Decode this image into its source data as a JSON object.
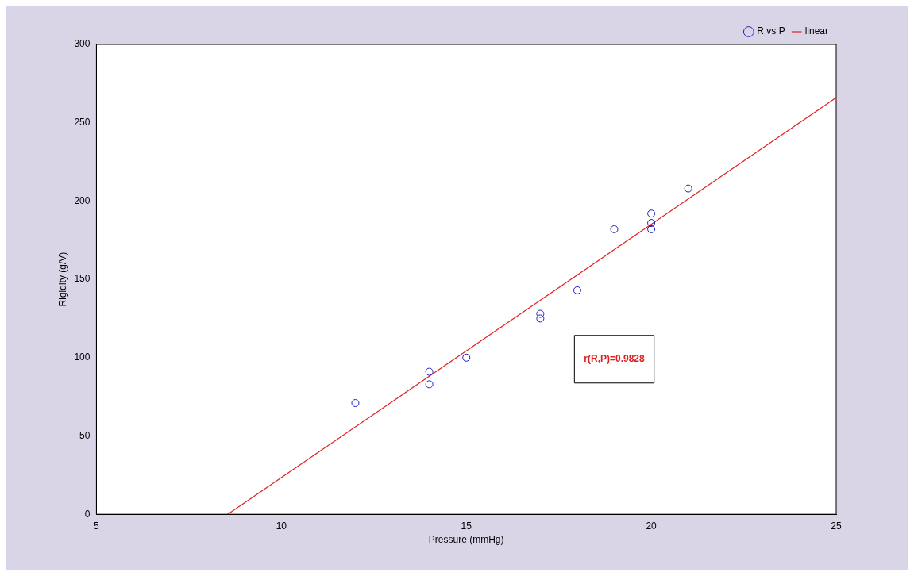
{
  "chart_data": {
    "type": "scatter",
    "xlabel": "Pressure (mmHg)",
    "ylabel": "Rigidity (g/V)",
    "series": [
      {
        "name": "R vs P",
        "color": "#1f1fbf",
        "marker": "circle",
        "x": [
          12,
          14,
          14,
          15,
          17,
          17,
          18,
          19,
          20,
          20,
          20,
          21
        ],
        "values": [
          71,
          91,
          83,
          100,
          128,
          125,
          143,
          182,
          192,
          186,
          182,
          208
        ]
      },
      {
        "name": "linear",
        "type": "line",
        "color": "#e02020",
        "marker": "none",
        "x": [
          8.55,
          25
        ],
        "values": [
          0,
          266
        ]
      }
    ],
    "xlim": [
      5,
      25
    ],
    "xticks": [
      5,
      10,
      15,
      20,
      25
    ],
    "ylim": [
      0,
      300
    ],
    "yticks": [
      0,
      50,
      100,
      150,
      200,
      250,
      300
    ],
    "grid": false,
    "legend": "top right",
    "annotations": [
      "r(R,P)=0.9828"
    ]
  }
}
